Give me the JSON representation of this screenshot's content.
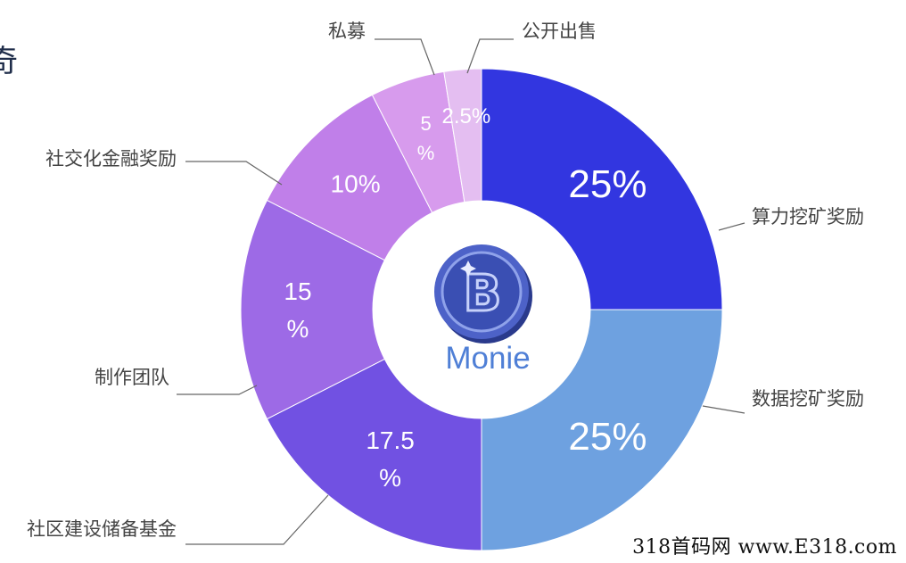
{
  "edge_text": "奇",
  "watermark": "318首码网 www.E318.com",
  "center_label": "Monie",
  "center_logo_letter": "B",
  "chart_data": {
    "type": "pie",
    "donut": true,
    "title": "",
    "legend": "none",
    "slices": [
      {
        "name": "算力挖矿奖励",
        "value": 25,
        "label": "25%",
        "color": "#3236e0"
      },
      {
        "name": "数据挖矿奖励",
        "value": 25,
        "label": "25%",
        "color": "#6ea1e0"
      },
      {
        "name": "社区建设储备基金",
        "value": 17.5,
        "label": "17.5\n%",
        "color": "#7151e2"
      },
      {
        "name": "制作团队",
        "value": 15,
        "label": "15\n%",
        "color": "#9d6ae6"
      },
      {
        "name": "社交化金融奖励",
        "value": 10,
        "label": "10%",
        "color": "#c07fe9"
      },
      {
        "name": "私募",
        "value": 5,
        "label": "5\n%",
        "color": "#d79bed"
      },
      {
        "name": "公开出售",
        "value": 2.5,
        "label": "2.5%",
        "color": "#e4bef1"
      }
    ]
  }
}
